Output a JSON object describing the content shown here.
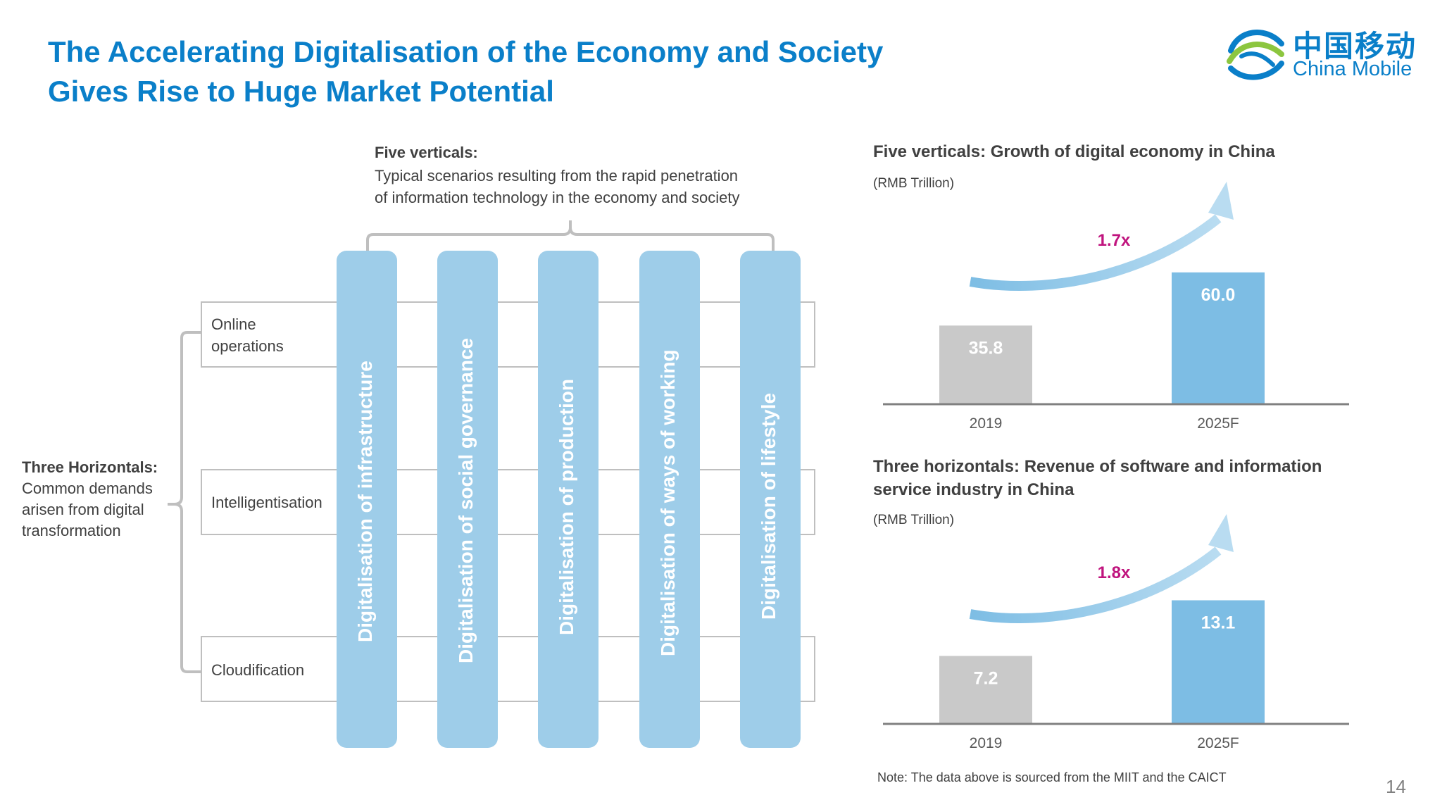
{
  "title": {
    "line1": "The Accelerating Digitalisation of the Economy and Society",
    "line2": "Gives Rise to Huge Market Potential"
  },
  "logo": {
    "cn": "中国移动",
    "en": "China Mobile"
  },
  "verticals_caption": {
    "heading": "Five verticals:",
    "line1": "Typical scenarios resulting from the rapid penetration",
    "line2": "of information technology in the economy and society"
  },
  "horizontals_caption": {
    "heading": "Three Horizontals:",
    "lines": [
      "Common demands",
      "arisen from digital",
      "transformation"
    ]
  },
  "horizontals": [
    "Online\noperations",
    "Intelligentisation",
    "Cloudification"
  ],
  "verticals": [
    "Digitalisation of infrastructure",
    "Digitalisation of social governance",
    "Digitalisation of production",
    "Digitalisation of ways of working",
    "Digitalisation of lifestyle"
  ],
  "colors": {
    "brand": "#0a7fc9",
    "pillar": "#9ecde9",
    "bar_gray": "#c9c9c9",
    "bar_blue": "#7dbde4",
    "growth": "#c0147e"
  },
  "chart_data": [
    {
      "type": "bar",
      "title": "Five verticals: Growth of digital economy in China",
      "unit": "(RMB Trillion)",
      "categories": [
        "2019",
        "2025F"
      ],
      "values": [
        35.8,
        60.0
      ],
      "value_labels": [
        "35.8",
        "60.0"
      ],
      "growth_label": "1.7x"
    },
    {
      "type": "bar",
      "title": "Three horizontals: Revenue of software and information service industry in China",
      "title_lines": [
        "Three horizontals: Revenue of software and information",
        "service industry in China"
      ],
      "unit": "(RMB Trillion)",
      "categories": [
        "2019",
        "2025F"
      ],
      "values": [
        7.2,
        13.1
      ],
      "value_labels": [
        "7.2",
        "13.1"
      ],
      "growth_label": "1.8x"
    }
  ],
  "note": "Note: The data above is sourced from the MIIT and the CAICT",
  "page_number": "14"
}
